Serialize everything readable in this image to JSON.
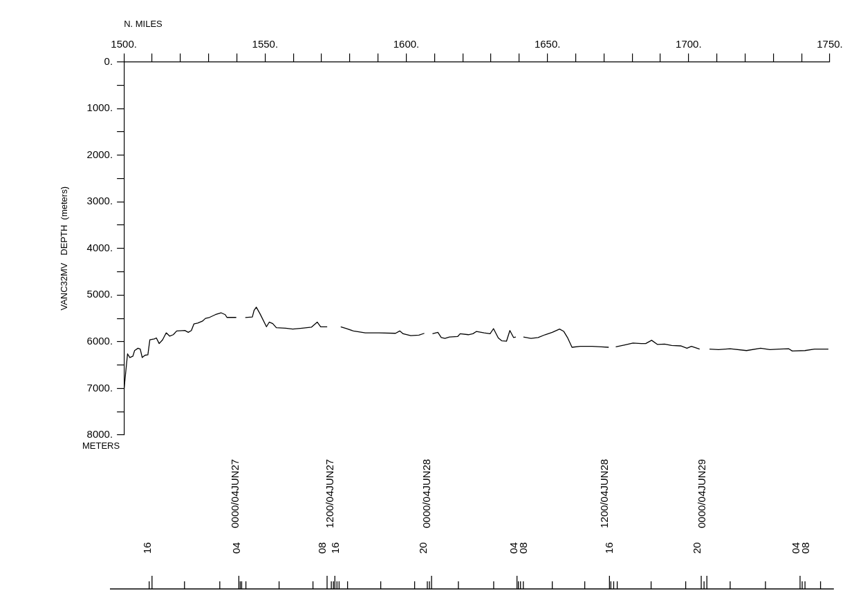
{
  "chart_data": {
    "type": "line",
    "xlabel": "N. MILES",
    "ylabel": "VANC32MV   DEPTH  (meters)",
    "legend": false,
    "grid": false,
    "marker": "none",
    "annotations": [
      "METERS",
      "0000/04JUN27",
      "1200/04JUN27",
      "0000/04JUN28",
      "1200/04JUN28",
      "0000/04JUN29",
      "16",
      "04",
      "08",
      "16",
      "20",
      "04",
      "08",
      "16",
      "20",
      "04",
      "08"
    ],
    "xlim": [
      1500,
      1750
    ],
    "xticks": [
      {
        "value": 1500,
        "label": "1500."
      },
      {
        "value": 1510,
        "label": null
      },
      {
        "value": 1520,
        "label": null
      },
      {
        "value": 1530,
        "label": null
      },
      {
        "value": 1540,
        "label": null
      },
      {
        "value": 1550,
        "label": "1550."
      },
      {
        "value": 1560,
        "label": null
      },
      {
        "value": 1570,
        "label": null
      },
      {
        "value": 1580,
        "label": null
      },
      {
        "value": 1590,
        "label": null
      },
      {
        "value": 1600,
        "label": "1600."
      },
      {
        "value": 1610,
        "label": null
      },
      {
        "value": 1620,
        "label": null
      },
      {
        "value": 1630,
        "label": null
      },
      {
        "value": 1640,
        "label": null
      },
      {
        "value": 1650,
        "label": "1650."
      },
      {
        "value": 1660,
        "label": null
      },
      {
        "value": 1670,
        "label": null
      },
      {
        "value": 1680,
        "label": null
      },
      {
        "value": 1690,
        "label": null
      },
      {
        "value": 1700,
        "label": "1700."
      },
      {
        "value": 1710,
        "label": null
      },
      {
        "value": 1720,
        "label": null
      },
      {
        "value": 1730,
        "label": null
      },
      {
        "value": 1740,
        "label": null
      },
      {
        "value": 1750,
        "label": "1750."
      }
    ],
    "ylim": [
      8000,
      0
    ],
    "yticks": [
      {
        "value": 0,
        "label": "0."
      },
      {
        "value": 500,
        "label": null
      },
      {
        "value": 1000,
        "label": "1000."
      },
      {
        "value": 1500,
        "label": null
      },
      {
        "value": 2000,
        "label": "2000."
      },
      {
        "value": 2500,
        "label": null
      },
      {
        "value": 3000,
        "label": "3000."
      },
      {
        "value": 3500,
        "label": null
      },
      {
        "value": 4000,
        "label": "4000."
      },
      {
        "value": 4500,
        "label": null
      },
      {
        "value": 5000,
        "label": "5000."
      },
      {
        "value": 5500,
        "label": null
      },
      {
        "value": 6000,
        "label": "6000."
      },
      {
        "value": 6500,
        "label": null
      },
      {
        "value": 7000,
        "label": "7000."
      },
      {
        "value": 7500,
        "label": null
      },
      {
        "value": 8000,
        "label": "8000."
      }
    ],
    "x": [
      1500.0,
      1501.3,
      1502.1,
      1503.2,
      1503.8,
      1505.0,
      1505.8,
      1506.5,
      1507.5,
      1508.5,
      1509.2,
      1510.8,
      1511.5,
      1512.5,
      1513.7,
      1515.0,
      1516.2,
      1517.5,
      1518.7,
      1521.6,
      1522.8,
      1523.9,
      1524.8,
      1526.2,
      1527.8,
      1528.9,
      1530.3,
      1532.4,
      1534.4,
      1535.9,
      1536.5,
      1539.8,
      1541.4,
      1543.0,
      1545.5,
      1546.1,
      1546.9,
      1548.2,
      1550.5,
      1551.5,
      1552.7,
      1554.0,
      1557.3,
      1559.8,
      1563.1,
      1566.4,
      1568.5,
      1569.7,
      1572.0,
      1574.4,
      1576.8,
      1578.8,
      1581.3,
      1585.5,
      1590.4,
      1596.2,
      1597.7,
      1598.9,
      1601.6,
      1604.5,
      1606.4,
      1607.8,
      1609.3,
      1611.2,
      1612.4,
      1613.7,
      1615.3,
      1618.2,
      1619.1,
      1622.0,
      1623.6,
      1624.9,
      1627.6,
      1629.7,
      1630.9,
      1632.6,
      1633.8,
      1635.5,
      1636.7,
      1638.0,
      1638.8,
      1640.1,
      1641.5,
      1644.2,
      1646.7,
      1649.2,
      1651.7,
      1654.3,
      1655.8,
      1657.1,
      1658.7,
      1661.6,
      1665.8,
      1669.1,
      1671.7,
      1673.0,
      1674.2,
      1677.4,
      1680.3,
      1683.2,
      1684.8,
      1686.9,
      1689.0,
      1691.5,
      1694.0,
      1697.2,
      1699.4,
      1701.0,
      1703.9,
      1705.6,
      1707.4,
      1710.6,
      1714.7,
      1720.5,
      1725.5,
      1728.8,
      1732.1,
      1735.4,
      1736.7,
      1741.2,
      1744.6,
      1749.5
    ],
    "series": [
      {
        "color": "#000000",
        "values": [
          7050,
          6260,
          6340,
          6310,
          6190,
          6140,
          6160,
          6340,
          6290,
          6280,
          5960,
          5940,
          5920,
          6040,
          5960,
          5810,
          5880,
          5850,
          5770,
          5760,
          5800,
          5760,
          5620,
          5600,
          5560,
          5500,
          5480,
          5420,
          5380,
          5420,
          5480,
          5480,
          null,
          5480,
          5470,
          5330,
          5260,
          5400,
          5680,
          5580,
          5610,
          5700,
          5710,
          5730,
          5710,
          5690,
          5580,
          5680,
          5680,
          null,
          5680,
          5720,
          5770,
          5810,
          5810,
          5820,
          5770,
          5830,
          5870,
          5860,
          5820,
          null,
          5830,
          5800,
          5910,
          5930,
          5900,
          5890,
          5830,
          5850,
          5830,
          5780,
          5810,
          5830,
          5720,
          5920,
          5980,
          5990,
          5760,
          5910,
          5900,
          null,
          5900,
          5930,
          5910,
          5850,
          5800,
          5730,
          5780,
          5910,
          6120,
          6100,
          6100,
          6110,
          6120,
          null,
          6110,
          6070,
          6030,
          6040,
          6040,
          5970,
          6060,
          6050,
          6080,
          6090,
          6140,
          6100,
          6160,
          null,
          6160,
          6170,
          6150,
          6190,
          6140,
          6170,
          6160,
          6150,
          6200,
          6190,
          6160,
          6160
        ]
      }
    ]
  }
}
